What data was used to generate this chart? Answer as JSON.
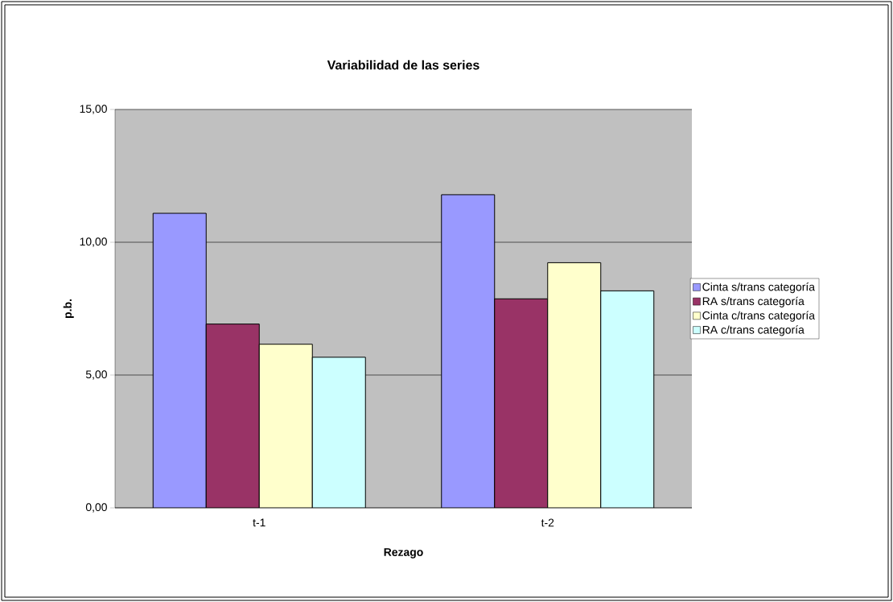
{
  "chart_data": {
    "type": "bar",
    "title": "Variabilidad de las series",
    "xlabel": "Rezago",
    "ylabel": "p.b.",
    "categories": [
      "t-1",
      "t-2"
    ],
    "series": [
      {
        "name": "Cinta s/trans categoría",
        "color": "#9999ff",
        "values": [
          11.09,
          11.79
        ]
      },
      {
        "name": "RA s/trans categoría",
        "color": "#993366",
        "values": [
          6.92,
          7.87
        ]
      },
      {
        "name": "Cinta c/trans categoría",
        "color": "#ffffcc",
        "values": [
          6.16,
          9.23
        ]
      },
      {
        "name": "RA c/trans categoría",
        "color": "#ccffff",
        "values": [
          5.67,
          8.17
        ]
      }
    ],
    "ylim": [
      0,
      15
    ],
    "yticks": [
      {
        "value": 0,
        "label": "0,00"
      },
      {
        "value": 5,
        "label": "5,00"
      },
      {
        "value": 10,
        "label": "10,00"
      },
      {
        "value": 15,
        "label": "15,00"
      }
    ],
    "grid": "y",
    "legend": "right"
  }
}
